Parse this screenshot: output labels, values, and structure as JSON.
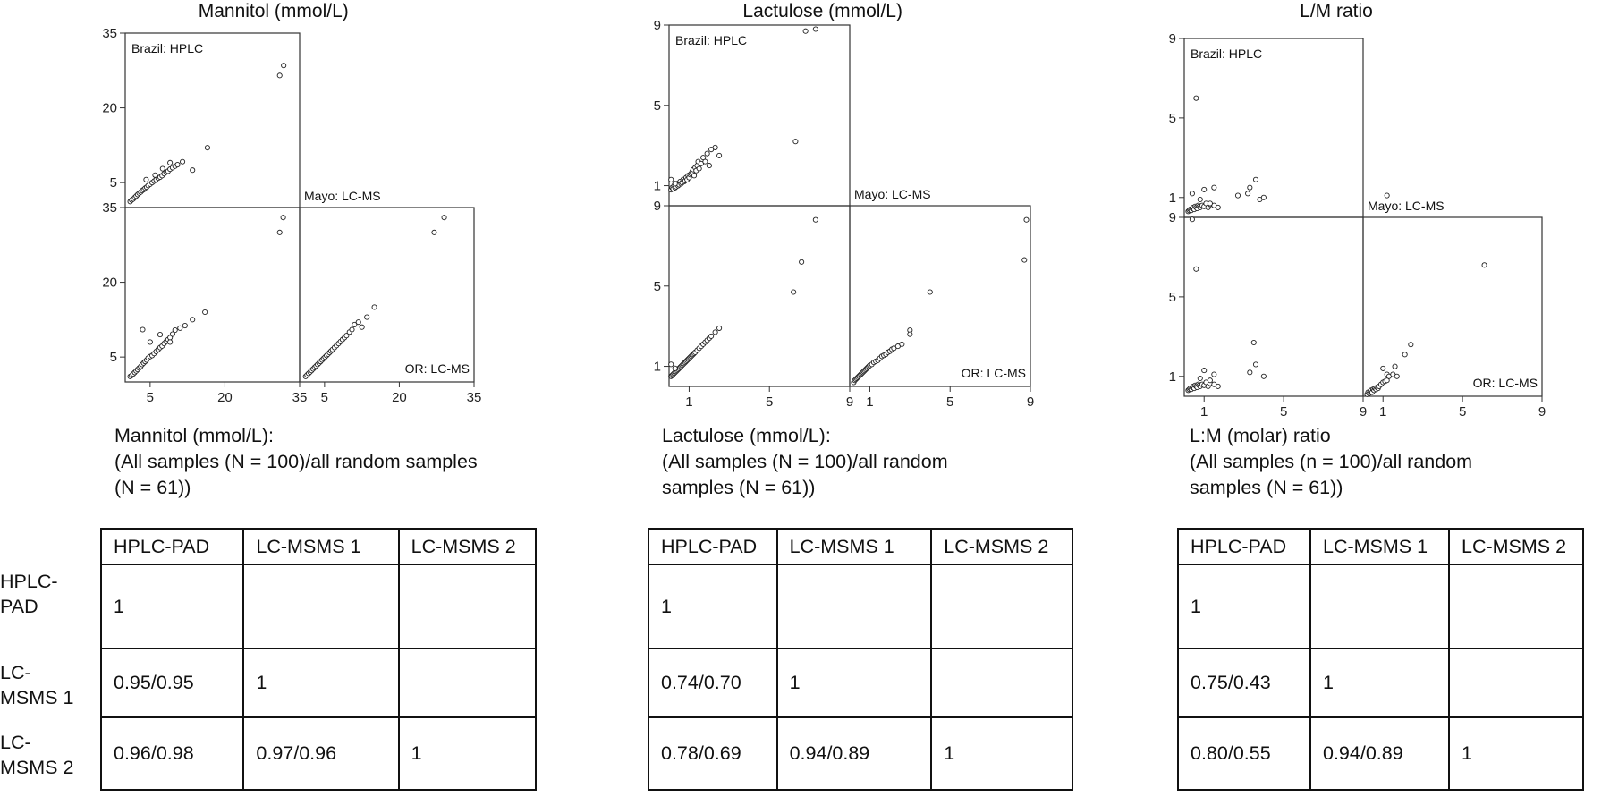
{
  "chart_data": [
    {
      "type": "scatter",
      "title": "Mannitol (mmol/L)",
      "axis_ticks": [
        "5",
        "20",
        "35"
      ],
      "axis_tick_values": [
        5,
        20,
        35
      ],
      "axis_range": [
        0,
        35
      ],
      "cells": {
        "brazil_hplc": "Brazil: HPLC",
        "mayo_lcms": "Mayo: LC-MS",
        "or_lcms": "OR: LC-MS"
      },
      "series": [
        {
          "name": "Mayo: LC-MS vs Brazil: HPLC",
          "x": [
            1.0,
            1.3,
            1.6,
            1.9,
            2.2,
            2.5,
            2.8,
            3.1,
            3.4,
            3.7,
            4.0,
            4.3,
            4.6,
            5.0,
            5.4,
            5.8,
            6.2,
            6.6,
            7.0,
            7.4,
            7.8,
            8.2,
            8.6,
            9.0,
            9.5,
            10.0,
            10.5,
            11.5,
            13.5,
            4.2,
            6.0,
            7.5,
            9.0,
            16.5,
            31.0,
            31.8
          ],
          "y": [
            1.2,
            1.5,
            1.7,
            2.0,
            2.3,
            2.6,
            2.9,
            3.1,
            3.4,
            3.6,
            3.9,
            4.1,
            4.4,
            4.7,
            5.0,
            5.3,
            5.6,
            5.9,
            6.1,
            6.4,
            6.8,
            7.1,
            7.3,
            7.7,
            8.0,
            8.3,
            8.6,
            9.2,
            7.5,
            5.6,
            6.5,
            7.8,
            9.0,
            12.0,
            26.5,
            28.5
          ]
        },
        {
          "name": "OR: LC-MS vs Brazil: HPLC",
          "x": [
            1.0,
            1.3,
            1.6,
            1.9,
            2.2,
            2.5,
            2.8,
            3.1,
            3.4,
            3.7,
            4.0,
            4.3,
            4.6,
            5.0,
            5.4,
            5.8,
            6.2,
            6.6,
            7.0,
            7.4,
            7.8,
            8.2,
            8.6,
            9.0,
            9.5,
            10.0,
            11.0,
            12.0,
            13.5,
            3.5,
            5.0,
            7.0,
            9.0,
            16.0,
            31.0,
            31.7
          ],
          "y": [
            1.1,
            1.3,
            1.6,
            1.9,
            2.2,
            2.5,
            2.8,
            3.1,
            3.5,
            3.8,
            4.1,
            4.4,
            4.8,
            5.1,
            5.3,
            5.7,
            6.1,
            6.5,
            6.9,
            7.2,
            7.7,
            8.1,
            8.5,
            8.9,
            9.6,
            10.4,
            10.8,
            11.3,
            12.5,
            10.5,
            8.0,
            9.5,
            8.0,
            14.0,
            30.0,
            33.0
          ]
        },
        {
          "name": "OR: LC-MS vs Mayo: LC-MS",
          "x": [
            1.2,
            1.5,
            1.8,
            2.1,
            2.4,
            2.7,
            3.0,
            3.3,
            3.6,
            3.9,
            4.2,
            4.5,
            4.8,
            5.1,
            5.4,
            5.7,
            6.0,
            6.3,
            6.6,
            7.0,
            7.4,
            7.8,
            8.2,
            8.6,
            9.0,
            9.4,
            10.0,
            10.5,
            11.0,
            11.8,
            12.5,
            13.5,
            15.0,
            27.0,
            29.0
          ],
          "y": [
            1.1,
            1.4,
            1.7,
            2.0,
            2.3,
            2.6,
            2.9,
            3.2,
            3.5,
            3.8,
            4.1,
            4.4,
            4.7,
            5.0,
            5.3,
            5.6,
            5.9,
            6.2,
            6.5,
            6.9,
            7.3,
            7.7,
            8.1,
            8.5,
            8.9,
            9.3,
            10.0,
            10.5,
            11.5,
            12.0,
            11.0,
            13.0,
            15.0,
            30.0,
            33.0
          ]
        }
      ]
    },
    {
      "type": "scatter",
      "title": "Lactulose (mmol/L)",
      "axis_ticks": [
        "1",
        "5",
        "9"
      ],
      "axis_tick_values": [
        1,
        5,
        9
      ],
      "axis_range": [
        0,
        9
      ],
      "cells": {
        "brazil_hplc": "Brazil: HPLC",
        "mayo_lcms": "Mayo: LC-MS",
        "or_lcms": "OR: LC-MS"
      },
      "series": [
        {
          "name": "Mayo: LC-MS vs Brazil: HPLC",
          "x": [
            0.1,
            0.15,
            0.2,
            0.25,
            0.3,
            0.35,
            0.4,
            0.45,
            0.5,
            0.55,
            0.6,
            0.65,
            0.7,
            0.75,
            0.8,
            0.85,
            0.9,
            0.95,
            1.0,
            1.05,
            1.1,
            1.15,
            1.2,
            1.25,
            1.3,
            1.35,
            1.4,
            1.45,
            1.5,
            1.6,
            1.7,
            1.8,
            1.9,
            2.0,
            2.1,
            2.3,
            2.5,
            0.1,
            0.3,
            6.3,
            6.8,
            7.3
          ],
          "y": [
            0.8,
            0.9,
            0.85,
            1.0,
            0.9,
            0.95,
            1.1,
            1.0,
            1.05,
            1.2,
            1.1,
            1.15,
            1.3,
            1.2,
            1.25,
            1.4,
            1.3,
            1.5,
            1.4,
            1.55,
            1.6,
            1.7,
            1.8,
            1.5,
            1.9,
            1.75,
            2.0,
            2.2,
            1.85,
            2.1,
            2.4,
            2.2,
            2.6,
            2.0,
            2.8,
            2.9,
            2.5,
            1.3,
            1.1,
            3.2,
            8.7,
            8.8
          ]
        },
        {
          "name": "OR: LC-MS vs Brazil: HPLC",
          "x": [
            0.1,
            0.15,
            0.2,
            0.25,
            0.3,
            0.35,
            0.4,
            0.45,
            0.5,
            0.55,
            0.6,
            0.65,
            0.7,
            0.75,
            0.8,
            0.85,
            0.9,
            0.95,
            1.0,
            1.05,
            1.1,
            1.15,
            1.2,
            1.25,
            1.3,
            1.4,
            1.5,
            1.6,
            1.7,
            1.8,
            1.9,
            2.0,
            2.1,
            2.3,
            2.5,
            0.1,
            0.3,
            6.2,
            6.6,
            7.3
          ],
          "y": [
            0.5,
            0.55,
            0.6,
            0.65,
            0.7,
            0.75,
            0.8,
            0.85,
            0.9,
            0.95,
            1.0,
            1.05,
            1.1,
            1.15,
            1.2,
            1.25,
            1.3,
            1.35,
            1.4,
            1.45,
            1.5,
            1.55,
            1.6,
            1.65,
            1.7,
            1.8,
            1.9,
            2.0,
            2.1,
            2.2,
            2.3,
            2.4,
            2.5,
            2.7,
            2.9,
            1.1,
            0.9,
            4.7,
            6.2,
            8.3
          ]
        },
        {
          "name": "OR: LC-MS vs Mayo: LC-MS",
          "x": [
            0.2,
            0.25,
            0.3,
            0.35,
            0.4,
            0.45,
            0.5,
            0.55,
            0.6,
            0.65,
            0.7,
            0.75,
            0.8,
            0.85,
            0.9,
            0.95,
            1.0,
            1.1,
            1.2,
            1.3,
            1.4,
            1.5,
            1.6,
            1.7,
            1.8,
            1.9,
            2.0,
            2.1,
            2.2,
            2.4,
            2.6,
            3.0,
            3.0,
            4.0,
            8.7,
            8.8
          ],
          "y": [
            0.2,
            0.3,
            0.35,
            0.4,
            0.45,
            0.5,
            0.55,
            0.6,
            0.65,
            0.7,
            0.75,
            0.8,
            0.85,
            0.9,
            0.95,
            1.0,
            1.05,
            1.1,
            1.2,
            1.25,
            1.3,
            1.4,
            1.5,
            1.55,
            1.6,
            1.7,
            1.75,
            1.85,
            1.9,
            2.0,
            2.1,
            2.8,
            2.6,
            4.7,
            6.3,
            8.3
          ]
        }
      ]
    },
    {
      "type": "scatter",
      "title": "L/M ratio",
      "axis_ticks": [
        "1",
        "5",
        "9"
      ],
      "axis_tick_values": [
        1,
        5,
        9
      ],
      "axis_range": [
        0,
        9
      ],
      "cells": {
        "brazil_hplc": "Brazil: HPLC",
        "mayo_lcms": "Mayo: LC-MS",
        "or_lcms": "OR: LC-MS"
      },
      "series": [
        {
          "name": "Mayo: LC-MS vs Brazil: HPLC",
          "x": [
            0.2,
            0.25,
            0.3,
            0.35,
            0.4,
            0.45,
            0.5,
            0.55,
            0.6,
            0.65,
            0.7,
            0.75,
            0.8,
            0.9,
            1.0,
            1.1,
            1.2,
            1.3,
            1.5,
            1.7,
            0.4,
            0.6,
            2.7,
            3.2,
            3.6,
            3.8,
            3.3,
            4.0,
            1.0,
            1.5,
            10.2,
            0.8,
            1.3
          ],
          "y": [
            0.3,
            0.35,
            0.4,
            0.35,
            0.45,
            0.5,
            0.4,
            0.55,
            0.5,
            0.45,
            0.6,
            0.55,
            0.5,
            0.6,
            0.55,
            0.7,
            0.5,
            0.65,
            0.6,
            0.5,
            1.2,
            6.0,
            1.1,
            1.2,
            1.9,
            0.9,
            1.5,
            1.0,
            1.4,
            1.5,
            1.1,
            0.9,
            0.7
          ]
        },
        {
          "name": "OR: LC-MS vs Brazil: HPLC",
          "x": [
            0.2,
            0.25,
            0.3,
            0.35,
            0.4,
            0.45,
            0.5,
            0.55,
            0.6,
            0.65,
            0.7,
            0.75,
            0.8,
            0.9,
            1.0,
            1.1,
            1.2,
            1.3,
            1.5,
            1.7,
            0.4,
            0.6,
            3.5,
            3.6,
            3.3,
            4.0,
            1.0,
            1.5,
            10.2,
            0.8,
            1.3
          ],
          "y": [
            0.3,
            0.35,
            0.4,
            0.35,
            0.45,
            0.5,
            0.4,
            0.55,
            0.5,
            0.45,
            0.6,
            0.55,
            0.5,
            0.6,
            0.55,
            0.7,
            0.5,
            0.65,
            0.6,
            0.5,
            8.9,
            6.4,
            2.7,
            1.6,
            1.2,
            1.0,
            1.3,
            1.1,
            1.1,
            0.9,
            0.8
          ]
        },
        {
          "name": "OR: LC-MS vs Mayo: LC-MS",
          "x": [
            0.2,
            0.25,
            0.3,
            0.35,
            0.4,
            0.45,
            0.5,
            0.55,
            0.6,
            0.65,
            0.7,
            0.75,
            0.8,
            0.9,
            1.0,
            1.1,
            1.2,
            1.3,
            1.5,
            1.7,
            1.0,
            1.6,
            2.1,
            2.4,
            6.1
          ],
          "y": [
            0.1,
            0.2,
            0.15,
            0.25,
            0.3,
            0.2,
            0.35,
            0.3,
            0.4,
            0.35,
            0.45,
            0.4,
            0.5,
            0.6,
            0.7,
            0.75,
            0.8,
            1.0,
            1.1,
            1.0,
            1.4,
            1.5,
            2.1,
            2.6,
            6.6
          ]
        }
      ]
    }
  ],
  "tables": [
    {
      "caption_lines": [
        "Mannitol (mmol/L):",
        "(All samples (N = 100)/all random samples",
        "(N = 61))"
      ],
      "headers": [
        "HPLC-PAD",
        "LC-MSMS 1",
        "LC-MSMS 2"
      ],
      "row_labels": [
        "HPLC-\nPAD",
        "LC-\nMSMS 1",
        "LC-\nMSMS 2"
      ],
      "rows": [
        [
          "1",
          "",
          ""
        ],
        [
          "0.95/0.95",
          "1",
          ""
        ],
        [
          "0.96/0.98",
          "0.97/0.96",
          "1"
        ]
      ]
    },
    {
      "caption_lines": [
        "Lactulose (mmol/L):",
        "(All samples (N = 100)/all random",
        "samples (N = 61))"
      ],
      "headers": [
        "HPLC-PAD",
        "LC-MSMS 1",
        "LC-MSMS 2"
      ],
      "rows": [
        [
          "1",
          "",
          ""
        ],
        [
          "0.74/0.70",
          "1",
          ""
        ],
        [
          "0.78/0.69",
          "0.94/0.89",
          "1"
        ]
      ]
    },
    {
      "caption_lines": [
        "L:M (molar) ratio",
        "(All samples (n = 100)/all random",
        "samples (N = 61))"
      ],
      "headers": [
        "HPLC-PAD",
        "LC-MSMS 1",
        "LC-MSMS 2"
      ],
      "rows": [
        [
          "1",
          "",
          ""
        ],
        [
          "0.75/0.43",
          "1",
          ""
        ],
        [
          "0.80/0.55",
          "0.94/0.89",
          "1"
        ]
      ]
    }
  ]
}
